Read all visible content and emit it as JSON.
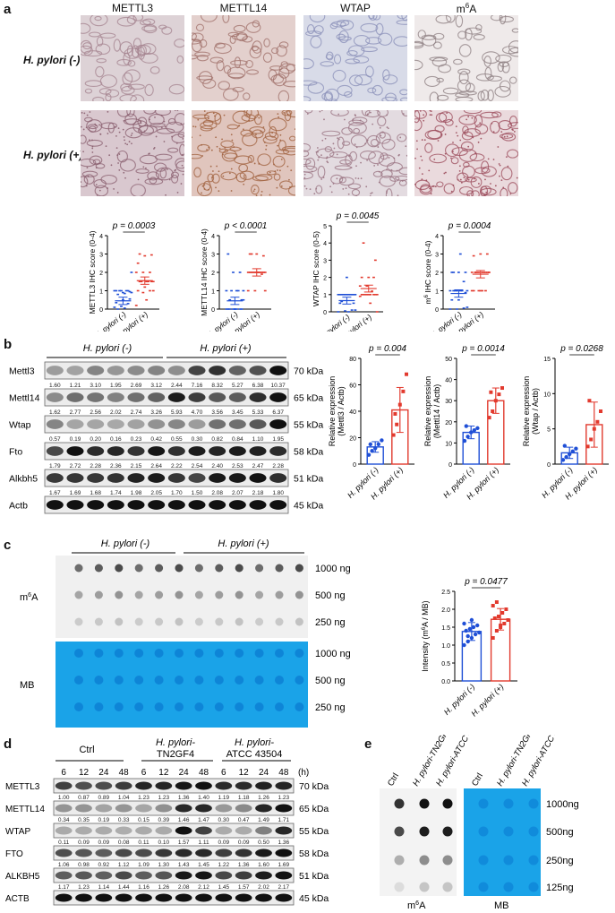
{
  "panel_a": {
    "letter": "a",
    "columns": [
      "METTL3",
      "METTL14",
      "WTAP",
      "m6A"
    ],
    "rows": [
      "H. pylori (-)",
      "H. pylori (+)"
    ],
    "charts": [
      {
        "ylabel": "METTL3 IHC score (0-4)",
        "pvalue": "p = 0.0003",
        "ylim": [
          0,
          4
        ],
        "neg_mean": 0.45,
        "pos_mean": 1.55,
        "neg_points": [
          0.1,
          0.15,
          0.3,
          0.35,
          0.5,
          0.55,
          0.8,
          0.85,
          0.9,
          1.0,
          1.0,
          1.0,
          1.0,
          1.0,
          1.0,
          0.9,
          0.95,
          0.0,
          0.05,
          2.0
        ],
        "pos_points": [
          0.2,
          0.9,
          1.0,
          1.0,
          1.2,
          1.5,
          1.5,
          1.5,
          1.5,
          1.5,
          1.5,
          2.0,
          2.0,
          2.0,
          2.5,
          2.9,
          2.95,
          3.0,
          0.5,
          1.0
        ]
      },
      {
        "ylabel": "METTL14 IHC score (0-4)",
        "pvalue": "p < 0.0001",
        "ylim": [
          0,
          4
        ],
        "neg_mean": 0.45,
        "pos_mean": 2.0,
        "neg_points": [
          0.0,
          0.0,
          0.0,
          0.0,
          0.0,
          0.5,
          0.5,
          1.0,
          1.0,
          1.0,
          1.0,
          1.0,
          2.0,
          2.0,
          3.0,
          0.0,
          0.0,
          0.0,
          0.0,
          0.5
        ],
        "pos_points": [
          1.0,
          1.0,
          1.9,
          2.0,
          2.0,
          2.0,
          2.0,
          2.0,
          2.0,
          2.0,
          2.0,
          2.0,
          2.0,
          2.0,
          3.0,
          3.0,
          2.9,
          3.0,
          2.0,
          1.0
        ]
      },
      {
        "ylabel": "WTAP IHC score (0-5)",
        "pvalue": "p = 0.0045",
        "ylim": [
          0,
          5
        ],
        "neg_mean": 0.65,
        "pos_mean": 1.35,
        "neg_points": [
          0.0,
          0.05,
          0.1,
          0.5,
          1.0,
          1.0,
          1.0,
          1.0,
          1.0,
          1.0,
          1.0,
          1.0,
          1.0,
          1.0,
          1.0,
          2.0,
          0.5,
          0.6,
          0.0,
          0.1
        ],
        "pos_points": [
          0.9,
          1.0,
          1.0,
          1.0,
          1.0,
          1.0,
          1.0,
          1.0,
          1.0,
          1.0,
          1.2,
          1.5,
          1.5,
          2.0,
          2.0,
          2.0,
          3.0,
          4.0,
          0.5,
          0.0
        ]
      },
      {
        "ylabel": "m6A IHC score (0-4)",
        "pvalue": "p = 0.0004",
        "ylim": [
          0,
          4
        ],
        "neg_mean": 0.85,
        "pos_mean": 1.9,
        "neg_points": [
          0.0,
          0.0,
          0.05,
          0.5,
          0.5,
          0.9,
          1.0,
          1.0,
          1.0,
          1.0,
          1.0,
          1.0,
          1.0,
          1.5,
          2.0,
          2.0,
          2.0,
          2.0,
          3.0,
          0.1
        ],
        "pos_points": [
          1.0,
          1.0,
          1.0,
          1.0,
          1.0,
          2.0,
          2.0,
          2.0,
          2.0,
          2.0,
          2.0,
          2.0,
          2.0,
          2.0,
          2.9,
          3.0,
          3.0,
          2.0,
          1.0,
          2.0
        ]
      }
    ],
    "xlabels": [
      "H. pylori (-)",
      "H. pylori (+)"
    ]
  },
  "panel_b": {
    "letter": "b",
    "group_neg": "H. pylori (-)",
    "group_pos": "H. pylori (+)",
    "blots": [
      {
        "name": "Mettl3",
        "kda": "70 kDa",
        "values": [
          "1.60",
          "1.21",
          "3.10",
          "1.95",
          "2.69",
          "3.12",
          "2.44",
          "7.16",
          "8.32",
          "5.27",
          "6.38",
          "10.37"
        ]
      },
      {
        "name": "Mettl14",
        "kda": "65 kDa",
        "values": [
          "1.62",
          "2.77",
          "2.56",
          "2.02",
          "2.74",
          "3.26",
          "5.93",
          "4.70",
          "3.56",
          "3.45",
          "5.33",
          "6.37"
        ]
      },
      {
        "name": "Wtap",
        "kda": "55 kDa",
        "values": [
          "0.57",
          "0.19",
          "0.20",
          "0.16",
          "0.23",
          "0.42",
          "0.55",
          "0.30",
          "0.82",
          "0.84",
          "1.10",
          "1.95"
        ]
      },
      {
        "name": "Fto",
        "kda": "58 kDa",
        "values": [
          "1.79",
          "2.72",
          "2.28",
          "2.36",
          "2.15",
          "2.64",
          "2.22",
          "2.54",
          "2.40",
          "2.53",
          "2.47",
          "2.28"
        ]
      },
      {
        "name": "Alkbh5",
        "kda": "51 kDa",
        "values": [
          "1.67",
          "1.69",
          "1.68",
          "1.74",
          "1.98",
          "2.05",
          "1.70",
          "1.50",
          "2.08",
          "2.07",
          "2.18",
          "1.80"
        ]
      },
      {
        "name": "Actb",
        "kda": "45 kDa",
        "values": []
      }
    ],
    "charts": [
      {
        "ylabel": "Relative expression (Mettl3 / Actb)",
        "pvalue": "p = 0.004",
        "ylim": [
          0,
          80
        ],
        "yticks": [
          0,
          20,
          40,
          60,
          80
        ],
        "neg_mean": 13,
        "pos_mean": 41,
        "neg_err": 4,
        "pos_err": 17,
        "neg_points": [
          7,
          10,
          12,
          15,
          18,
          15
        ],
        "pos_points": [
          22,
          30,
          45,
          55,
          68,
          38
        ]
      },
      {
        "ylabel": "Relative expression (Mettl14 / Actb)",
        "pvalue": "p = 0.0014",
        "ylim": [
          0,
          50
        ],
        "yticks": [
          0,
          10,
          20,
          30,
          40,
          50
        ],
        "neg_mean": 15,
        "pos_mean": 30,
        "neg_err": 3,
        "pos_err": 6,
        "neg_points": [
          11,
          13,
          15,
          16,
          17,
          18
        ],
        "pos_points": [
          22,
          25,
          30,
          33,
          36,
          34
        ]
      },
      {
        "ylabel": "Relative expression (Wtap / Actb)",
        "pvalue": "p = 0.0268",
        "ylim": [
          0,
          15
        ],
        "yticks": [
          0,
          5,
          10,
          15
        ],
        "neg_mean": 1.6,
        "pos_mean": 5.6,
        "neg_err": 0.8,
        "pos_err": 3.2,
        "neg_points": [
          0.6,
          1.0,
          1.4,
          1.8,
          2.2,
          2.6
        ],
        "pos_points": [
          2.5,
          3.5,
          5.0,
          6.0,
          7.5,
          9.0
        ]
      }
    ],
    "xlabels": [
      "H. pylori (-)",
      "H. pylori (+)"
    ]
  },
  "panel_c": {
    "letter": "c",
    "group_neg": "H. pylori (-)",
    "group_pos": "H. pylori (+)",
    "m6a_label": "m6A",
    "mb_label": "MB",
    "amounts": [
      "1000 ng",
      "500 ng",
      "250 ng",
      "1000 ng",
      "500 ng",
      "250 ng"
    ],
    "chart": {
      "ylabel": "Intensity (m6A / MB)",
      "pvalue": "p = 0.0477",
      "ylim": [
        0,
        2.5
      ],
      "yticks": [
        0.0,
        0.5,
        1.0,
        1.5,
        2.0,
        2.5
      ],
      "neg_mean": 1.38,
      "pos_mean": 1.72,
      "neg_err": 0.25,
      "pos_err": 0.3,
      "neg_points": [
        1.0,
        1.1,
        1.2,
        1.3,
        1.35,
        1.4,
        1.45,
        1.5,
        1.55,
        1.6,
        1.25,
        1.7
      ],
      "pos_points": [
        1.2,
        1.4,
        1.5,
        1.6,
        1.7,
        1.75,
        1.8,
        1.9,
        2.0,
        2.1,
        2.2,
        1.55
      ]
    }
  },
  "panel_d": {
    "letter": "d",
    "group_ctrl": "Ctrl",
    "group_tn": "H. pylori-\nTN2GF4",
    "group_atcc": "H. pylori-\nATCC 43504",
    "timepoints": [
      "6",
      "12",
      "24",
      "48",
      "6",
      "12",
      "24",
      "48",
      "6",
      "12",
      "24",
      "48"
    ],
    "unit": "(h)",
    "blots": [
      {
        "name": "METTL3",
        "kda": "70 kDa",
        "values": [
          "1.00",
          "0.87",
          "0.89",
          "1.04",
          "1.23",
          "1.23",
          "1.36",
          "1.40",
          "1.19",
          "1.18",
          "1.26",
          "1.23"
        ]
      },
      {
        "name": "METTL14",
        "kda": "65 kDa",
        "values": [
          "0.34",
          "0.35",
          "0.19",
          "0.33",
          "0.15",
          "0.39",
          "1.46",
          "1.47",
          "0.30",
          "0.47",
          "1.49",
          "1.71"
        ]
      },
      {
        "name": "WTAP",
        "kda": "55 kDa",
        "values": [
          "0.11",
          "0.09",
          "0.09",
          "0.08",
          "0.11",
          "0.10",
          "1.57",
          "1.11",
          "0.09",
          "0.09",
          "0.50",
          "1.36"
        ]
      },
      {
        "name": "FTO",
        "kda": "58 kDa",
        "values": [
          "1.06",
          "0.98",
          "0.92",
          "1.12",
          "1.09",
          "1.30",
          "1.43",
          "1.45",
          "1.22",
          "1.36",
          "1.60",
          "1.69"
        ]
      },
      {
        "name": "ALKBH5",
        "kda": "51 kDa",
        "values": [
          "1.17",
          "1.23",
          "1.14",
          "1.44",
          "1.16",
          "1.26",
          "2.08",
          "2.12",
          "1.45",
          "1.57",
          "2.02",
          "2.17"
        ]
      },
      {
        "name": "ACTB",
        "kda": "45 kDa",
        "values": []
      }
    ]
  },
  "panel_e": {
    "letter": "e",
    "col_labels": [
      "Ctrl",
      "H. pylori-TN2GF4",
      "H. pylori-ATCC 43504"
    ],
    "amounts": [
      "1000ng",
      "500ng",
      "250ng",
      "125ng"
    ],
    "m6a_label": "m6A",
    "mb_label": "MB"
  },
  "colors": {
    "neg": "#1f4fd6",
    "pos": "#e23a2e",
    "mb": "#1aa3e8"
  }
}
